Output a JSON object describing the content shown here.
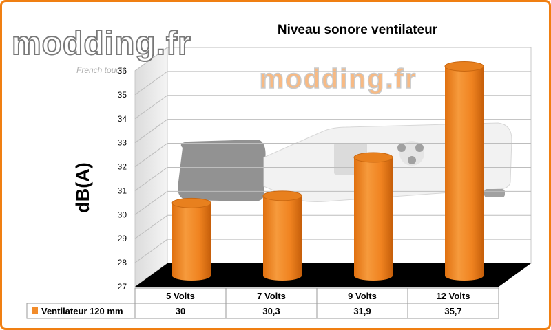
{
  "chart_data": {
    "type": "bar",
    "title": "Niveau sonore ventilateur",
    "ylabel": "dB(A)",
    "xlabel": "",
    "ylim": [
      27,
      36
    ],
    "yticks": [
      27,
      28,
      29,
      30,
      31,
      32,
      33,
      34,
      35,
      36
    ],
    "categories": [
      "5 Volts",
      "7 Volts",
      "9 Volts",
      "12 Volts"
    ],
    "series": [
      {
        "name": "Ventilateur 120 mm",
        "values": [
          30,
          30.3,
          31.9,
          35.7
        ],
        "value_labels": [
          "30",
          "30,3",
          "31,9",
          "35,7"
        ]
      }
    ],
    "grid": true,
    "legend": "data-table-left",
    "bar_shape": "cylinder",
    "colors": {
      "bar": "#f28c2a",
      "bar_dark": "#c8620c",
      "frame": "#f07f12",
      "floor": "#000000"
    }
  },
  "watermarks": {
    "logo": "modding.fr",
    "tagline": "French touch"
  }
}
